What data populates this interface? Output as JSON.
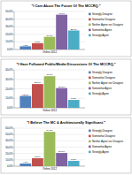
{
  "chart_data": [
    {
      "type": "bar",
      "title": "\"I Care About The Future Of The MCCRQ.\"",
      "categories": [
        "Online 2012"
      ],
      "series": [
        {
          "name": "Strongly Disagree",
          "color": "#4f81bd",
          "values": [
            4.2
          ],
          "value_labels": [
            "4.2%"
          ]
        },
        {
          "name": "Somewhat Disagree",
          "color": "#c0504d",
          "values": [
            8.3
          ],
          "value_labels": [
            "8.3%"
          ]
        },
        {
          "name": "Neither Agree nor Disagree",
          "color": "#9bbb59",
          "values": [
            16.7
          ],
          "value_labels": [
            "16.7%"
          ]
        },
        {
          "name": "Somewhat Agree",
          "color": "#8064a2",
          "values": [
            45.8
          ],
          "value_labels": [
            "45.8%"
          ]
        },
        {
          "name": "Strongly Agree",
          "color": "#4bacc6",
          "values": [
            25.0
          ],
          "value_labels": [
            "25.0%"
          ]
        }
      ],
      "ylim": [
        0,
        50
      ],
      "yticks": [
        {
          "value": 0,
          "label": "0.0%"
        },
        {
          "value": 10,
          "label": "10.0%"
        },
        {
          "value": 20,
          "label": "20.0%"
        },
        {
          "value": 30,
          "label": "30.0%"
        },
        {
          "value": 40,
          "label": "40.0%"
        },
        {
          "value": 50,
          "label": "50.0%"
        }
      ],
      "grid": true,
      "legend": "right",
      "data_labels": true
    },
    {
      "type": "bar",
      "title": "\"I Have Followed Public/Media Discussions Of The MCCRQ.\"",
      "categories": [
        "Online 2012"
      ],
      "series": [
        {
          "name": "Strongly Disagree",
          "color": "#4f81bd",
          "values": [
            12.5
          ],
          "value_labels": [
            "12.5%"
          ]
        },
        {
          "name": "Somewhat Disagree",
          "color": "#c0504d",
          "values": [
            25.0
          ],
          "value_labels": [
            "25.0%"
          ]
        },
        {
          "name": "Neither Agree nor Disagree",
          "color": "#9bbb59",
          "values": [
            33.3
          ],
          "value_labels": [
            "33.3%"
          ]
        },
        {
          "name": "Somewhat Agree",
          "color": "#8064a2",
          "values": [
            20.8
          ],
          "value_labels": [
            "20.8%"
          ]
        },
        {
          "name": "Strongly Agree",
          "color": "#4bacc6",
          "values": [
            8.3
          ],
          "value_labels": [
            "8.3%"
          ]
        }
      ],
      "ylim": [
        0,
        40
      ],
      "yticks": [
        {
          "value": 0,
          "label": "0.0%"
        },
        {
          "value": 10,
          "label": "10.0%"
        },
        {
          "value": 20,
          "label": "20.0%"
        },
        {
          "value": 30,
          "label": "30.0%"
        },
        {
          "value": 40,
          "label": "40.0%"
        }
      ],
      "grid": true,
      "legend": "right",
      "data_labels": true
    },
    {
      "type": "bar",
      "title": "\"I Believe The MC & Architecturally Significant.\"",
      "categories": [
        "Online 2012"
      ],
      "series": [
        {
          "name": "Strongly Disagree",
          "color": "#4f81bd",
          "values": [
            4.2
          ],
          "value_labels": [
            "4.2%"
          ]
        },
        {
          "name": "Somewhat Disagree",
          "color": "#c0504d",
          "values": [
            12.5
          ],
          "value_labels": [
            "12.5%"
          ]
        },
        {
          "name": "Neither Agree nor Disagree",
          "color": "#9bbb59",
          "values": [
            54.2
          ],
          "value_labels": [
            "54.2%"
          ]
        },
        {
          "name": "Somewhat Agree",
          "color": "#8064a2",
          "values": [
            20.8
          ],
          "value_labels": [
            "20.8%"
          ]
        },
        {
          "name": "Strongly Agree",
          "color": "#4bacc6",
          "values": [
            8.3
          ],
          "value_labels": [
            "8.3%"
          ]
        }
      ],
      "ylim": [
        0,
        60
      ],
      "yticks": [
        {
          "value": 0,
          "label": "0.0%"
        },
        {
          "value": 10,
          "label": "10.0%"
        },
        {
          "value": 20,
          "label": "20.0%"
        },
        {
          "value": 30,
          "label": "30.0%"
        },
        {
          "value": 40,
          "label": "40.0%"
        },
        {
          "value": 50,
          "label": "50.0%"
        },
        {
          "value": 60,
          "label": "60.0%"
        }
      ],
      "grid": true,
      "legend": "right",
      "data_labels": true
    }
  ]
}
